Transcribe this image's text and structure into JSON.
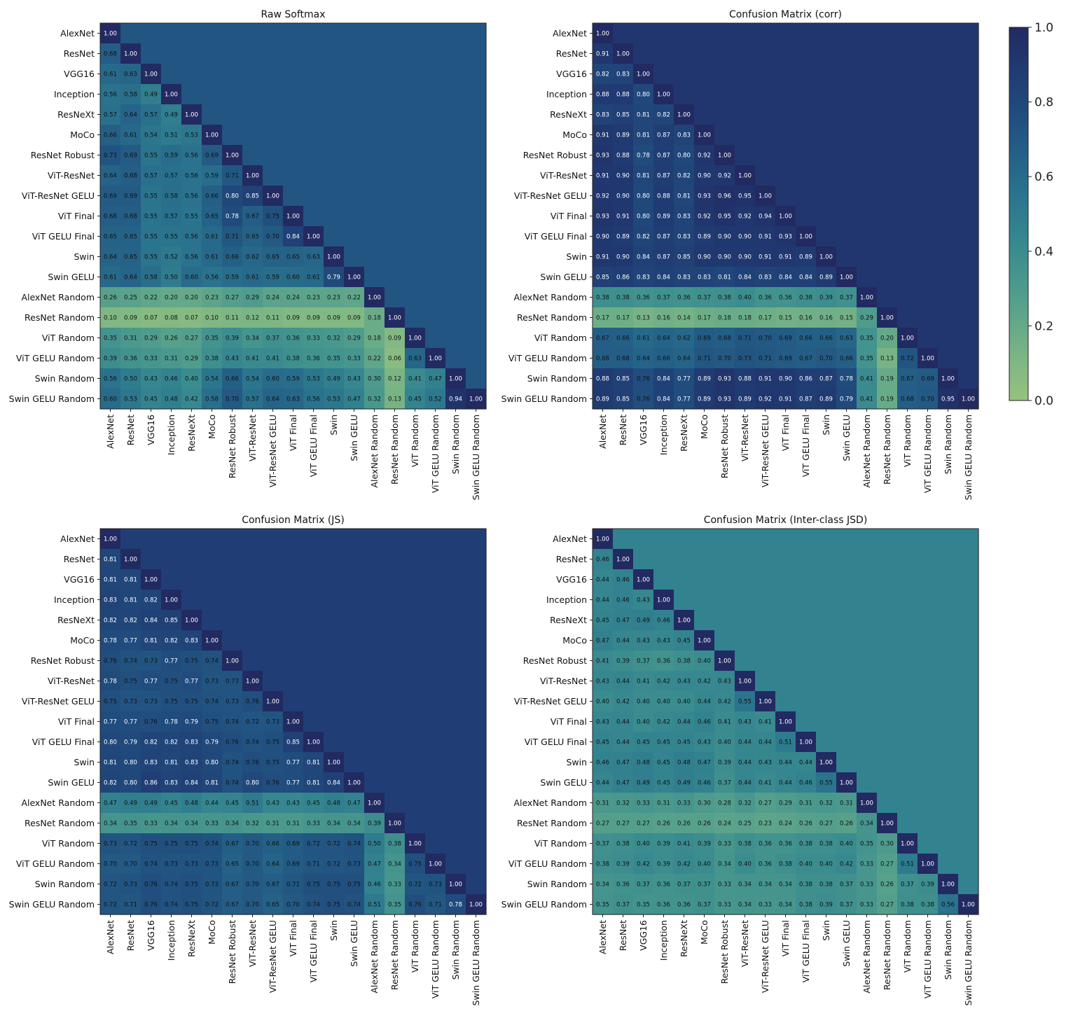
{
  "chart_data": [
    {
      "type": "heatmap",
      "title": "Raw Softmax",
      "labels": [
        "AlexNet",
        "ResNet",
        "VGG16",
        "Inception",
        "ResNeXt",
        "MoCo",
        "ResNet Robust",
        "ViT-ResNet",
        "ViT-ResNet GELU",
        "ViT Final",
        "ViT GELU Final",
        "Swin",
        "Swin GELU",
        "AlexNet Random",
        "ResNet Random",
        "ViT Random",
        "ViT GELU Random",
        "Swin Random",
        "Swin GELU Random"
      ],
      "lower": [
        [],
        [
          0.68
        ],
        [
          0.61,
          0.63
        ],
        [
          0.56,
          0.58,
          0.49
        ],
        [
          0.57,
          0.64,
          0.57,
          0.49
        ],
        [
          0.66,
          0.61,
          0.54,
          0.51,
          0.53
        ],
        [
          0.73,
          0.69,
          0.55,
          0.59,
          0.56,
          0.69
        ],
        [
          0.64,
          0.68,
          0.57,
          0.57,
          0.56,
          0.59,
          0.71
        ],
        [
          0.69,
          0.69,
          0.55,
          0.58,
          0.56,
          0.66,
          0.8,
          0.85
        ],
        [
          0.68,
          0.68,
          0.55,
          0.57,
          0.55,
          0.65,
          0.78,
          0.67,
          0.75
        ],
        [
          0.65,
          0.65,
          0.55,
          0.55,
          0.56,
          0.61,
          0.71,
          0.65,
          0.7,
          0.84
        ],
        [
          0.64,
          0.65,
          0.55,
          0.52,
          0.56,
          0.61,
          0.66,
          0.62,
          0.65,
          0.65,
          0.63
        ],
        [
          0.61,
          0.64,
          0.58,
          0.5,
          0.6,
          0.56,
          0.59,
          0.61,
          0.59,
          0.6,
          0.61,
          0.79
        ],
        [
          0.26,
          0.25,
          0.22,
          0.2,
          0.2,
          0.23,
          0.27,
          0.29,
          0.24,
          0.24,
          0.23,
          0.23,
          0.22
        ],
        [
          0.1,
          0.09,
          0.07,
          0.08,
          0.07,
          0.1,
          0.11,
          0.12,
          0.11,
          0.09,
          0.09,
          0.09,
          0.09,
          0.18
        ],
        [
          0.35,
          0.31,
          0.29,
          0.26,
          0.27,
          0.35,
          0.39,
          0.34,
          0.37,
          0.36,
          0.33,
          0.32,
          0.29,
          0.18,
          0.09
        ],
        [
          0.39,
          0.36,
          0.33,
          0.31,
          0.29,
          0.38,
          0.43,
          0.41,
          0.41,
          0.38,
          0.36,
          0.35,
          0.33,
          0.22,
          0.06,
          0.63
        ],
        [
          0.56,
          0.5,
          0.43,
          0.46,
          0.4,
          0.54,
          0.66,
          0.54,
          0.6,
          0.59,
          0.53,
          0.49,
          0.43,
          0.3,
          0.12,
          0.41,
          0.47
        ],
        [
          0.6,
          0.53,
          0.45,
          0.48,
          0.42,
          0.58,
          0.7,
          0.57,
          0.64,
          0.63,
          0.56,
          0.53,
          0.47,
          0.32,
          0.13,
          0.45,
          0.52,
          0.94
        ]
      ],
      "upper_mean": 0.72
    },
    {
      "type": "heatmap",
      "title": "Confusion Matrix (corr)",
      "labels": [
        "AlexNet",
        "ResNet",
        "VGG16",
        "Inception",
        "ResNeXt",
        "MoCo",
        "ResNet Robust",
        "ViT-ResNet",
        "ViT-ResNet GELU",
        "ViT Final",
        "ViT GELU Final",
        "Swin",
        "Swin GELU",
        "AlexNet Random",
        "ResNet Random",
        "ViT Random",
        "ViT GELU Random",
        "Swin Random",
        "Swin GELU Random"
      ],
      "lower": [
        [],
        [
          0.91
        ],
        [
          0.82,
          0.83
        ],
        [
          0.88,
          0.88,
          0.8
        ],
        [
          0.83,
          0.85,
          0.81,
          0.82
        ],
        [
          0.91,
          0.89,
          0.81,
          0.87,
          0.83
        ],
        [
          0.93,
          0.88,
          0.78,
          0.87,
          0.8,
          0.92
        ],
        [
          0.91,
          0.9,
          0.81,
          0.87,
          0.82,
          0.9,
          0.92
        ],
        [
          0.92,
          0.9,
          0.8,
          0.88,
          0.81,
          0.93,
          0.96,
          0.95
        ],
        [
          0.93,
          0.91,
          0.8,
          0.89,
          0.83,
          0.92,
          0.95,
          0.92,
          0.94
        ],
        [
          0.9,
          0.89,
          0.82,
          0.87,
          0.83,
          0.89,
          0.9,
          0.9,
          0.91,
          0.93
        ],
        [
          0.91,
          0.9,
          0.84,
          0.87,
          0.85,
          0.9,
          0.9,
          0.9,
          0.91,
          0.91,
          0.89
        ],
        [
          0.85,
          0.86,
          0.83,
          0.84,
          0.83,
          0.83,
          0.81,
          0.84,
          0.83,
          0.84,
          0.84,
          0.89
        ],
        [
          0.38,
          0.38,
          0.36,
          0.37,
          0.36,
          0.37,
          0.38,
          0.4,
          0.36,
          0.36,
          0.38,
          0.39,
          0.37
        ],
        [
          0.17,
          0.17,
          0.13,
          0.16,
          0.14,
          0.17,
          0.18,
          0.18,
          0.17,
          0.15,
          0.16,
          0.16,
          0.15,
          0.29
        ],
        [
          0.67,
          0.66,
          0.61,
          0.64,
          0.62,
          0.69,
          0.68,
          0.71,
          0.7,
          0.69,
          0.66,
          0.66,
          0.63,
          0.35,
          0.2
        ],
        [
          0.68,
          0.68,
          0.64,
          0.66,
          0.64,
          0.71,
          0.7,
          0.73,
          0.71,
          0.69,
          0.67,
          0.7,
          0.66,
          0.35,
          0.13,
          0.72
        ],
        [
          0.88,
          0.85,
          0.76,
          0.84,
          0.77,
          0.89,
          0.93,
          0.88,
          0.91,
          0.9,
          0.86,
          0.87,
          0.78,
          0.41,
          0.19,
          0.67,
          0.69
        ],
        [
          0.89,
          0.85,
          0.76,
          0.84,
          0.77,
          0.89,
          0.93,
          0.89,
          0.92,
          0.91,
          0.87,
          0.89,
          0.79,
          0.41,
          0.19,
          0.68,
          0.7,
          0.95
        ]
      ],
      "upper_mean": 0.92
    },
    {
      "type": "heatmap",
      "title": "Confusion Matrix (JS)",
      "labels": [
        "AlexNet",
        "ResNet",
        "VGG16",
        "Inception",
        "ResNeXt",
        "MoCo",
        "ResNet Robust",
        "ViT-ResNet",
        "ViT-ResNet GELU",
        "ViT Final",
        "ViT GELU Final",
        "Swin",
        "Swin GELU",
        "AlexNet Random",
        "ResNet Random",
        "ViT Random",
        "ViT GELU Random",
        "Swin Random",
        "Swin GELU Random"
      ],
      "lower": [
        [],
        [
          0.81
        ],
        [
          0.81,
          0.81
        ],
        [
          0.83,
          0.81,
          0.82
        ],
        [
          0.82,
          0.82,
          0.84,
          0.85
        ],
        [
          0.78,
          0.77,
          0.81,
          0.82,
          0.83
        ],
        [
          0.76,
          0.74,
          0.73,
          0.77,
          0.75,
          0.74
        ],
        [
          0.78,
          0.75,
          0.77,
          0.75,
          0.77,
          0.73,
          0.73
        ],
        [
          0.75,
          0.73,
          0.73,
          0.75,
          0.75,
          0.74,
          0.73,
          0.76
        ],
        [
          0.77,
          0.77,
          0.76,
          0.78,
          0.79,
          0.75,
          0.74,
          0.72,
          0.73
        ],
        [
          0.8,
          0.79,
          0.82,
          0.82,
          0.83,
          0.79,
          0.76,
          0.74,
          0.75,
          0.85
        ],
        [
          0.81,
          0.8,
          0.83,
          0.81,
          0.83,
          0.8,
          0.74,
          0.76,
          0.75,
          0.77,
          0.81
        ],
        [
          0.82,
          0.8,
          0.86,
          0.83,
          0.84,
          0.81,
          0.74,
          0.8,
          0.76,
          0.77,
          0.81,
          0.84
        ],
        [
          0.47,
          0.49,
          0.49,
          0.45,
          0.48,
          0.44,
          0.45,
          0.51,
          0.43,
          0.43,
          0.45,
          0.48,
          0.47
        ],
        [
          0.34,
          0.35,
          0.33,
          0.34,
          0.34,
          0.33,
          0.34,
          0.32,
          0.31,
          0.31,
          0.33,
          0.34,
          0.34,
          0.39
        ],
        [
          0.73,
          0.72,
          0.75,
          0.75,
          0.75,
          0.74,
          0.67,
          0.7,
          0.66,
          0.69,
          0.72,
          0.72,
          0.74,
          0.5,
          0.38
        ],
        [
          0.7,
          0.7,
          0.74,
          0.73,
          0.73,
          0.73,
          0.65,
          0.7,
          0.64,
          0.69,
          0.71,
          0.72,
          0.73,
          0.47,
          0.34,
          0.75
        ],
        [
          0.72,
          0.73,
          0.76,
          0.74,
          0.75,
          0.73,
          0.67,
          0.7,
          0.67,
          0.71,
          0.75,
          0.75,
          0.75,
          0.46,
          0.33,
          0.72,
          0.73
        ],
        [
          0.72,
          0.71,
          0.76,
          0.74,
          0.75,
          0.72,
          0.67,
          0.7,
          0.65,
          0.7,
          0.74,
          0.75,
          0.74,
          0.51,
          0.35,
          0.76,
          0.71,
          0.78
        ]
      ],
      "upper_mean": 0.86
    },
    {
      "type": "heatmap",
      "title": "Confusion Matrix (Inter-class JSD)",
      "labels": [
        "AlexNet",
        "ResNet",
        "VGG16",
        "Inception",
        "ResNeXt",
        "MoCo",
        "ResNet Robust",
        "ViT-ResNet",
        "ViT-ResNet GELU",
        "ViT Final",
        "ViT GELU Final",
        "Swin",
        "Swin GELU",
        "AlexNet Random",
        "ResNet Random",
        "ViT Random",
        "ViT GELU Random",
        "Swin Random",
        "Swin GELU Random"
      ],
      "lower": [
        [],
        [
          0.46
        ],
        [
          0.44,
          0.46
        ],
        [
          0.44,
          0.46,
          0.43
        ],
        [
          0.45,
          0.47,
          0.49,
          0.46
        ],
        [
          0.47,
          0.44,
          0.43,
          0.43,
          0.45
        ],
        [
          0.41,
          0.39,
          0.37,
          0.36,
          0.38,
          0.4
        ],
        [
          0.43,
          0.44,
          0.41,
          0.42,
          0.43,
          0.42,
          0.43
        ],
        [
          0.4,
          0.42,
          0.4,
          0.4,
          0.4,
          0.44,
          0.42,
          0.55
        ],
        [
          0.43,
          0.44,
          0.4,
          0.42,
          0.44,
          0.46,
          0.41,
          0.43,
          0.41
        ],
        [
          0.45,
          0.44,
          0.45,
          0.45,
          0.45,
          0.43,
          0.4,
          0.44,
          0.44,
          0.51
        ],
        [
          0.46,
          0.47,
          0.48,
          0.45,
          0.48,
          0.47,
          0.39,
          0.44,
          0.43,
          0.44,
          0.44
        ],
        [
          0.44,
          0.47,
          0.49,
          0.45,
          0.49,
          0.46,
          0.37,
          0.44,
          0.41,
          0.44,
          0.46,
          0.55
        ],
        [
          0.31,
          0.32,
          0.33,
          0.31,
          0.33,
          0.3,
          0.28,
          0.32,
          0.27,
          0.29,
          0.31,
          0.32,
          0.31
        ],
        [
          0.27,
          0.27,
          0.27,
          0.26,
          0.26,
          0.26,
          0.24,
          0.25,
          0.23,
          0.24,
          0.26,
          0.27,
          0.26,
          0.34
        ],
        [
          0.37,
          0.38,
          0.4,
          0.39,
          0.41,
          0.39,
          0.33,
          0.38,
          0.36,
          0.36,
          0.38,
          0.38,
          0.4,
          0.35,
          0.3
        ],
        [
          0.38,
          0.39,
          0.42,
          0.39,
          0.42,
          0.4,
          0.34,
          0.4,
          0.36,
          0.38,
          0.4,
          0.4,
          0.42,
          0.33,
          0.27,
          0.51
        ],
        [
          0.34,
          0.36,
          0.37,
          0.36,
          0.37,
          0.37,
          0.33,
          0.34,
          0.34,
          0.34,
          0.38,
          0.38,
          0.37,
          0.33,
          0.26,
          0.37,
          0.39
        ],
        [
          0.35,
          0.37,
          0.35,
          0.36,
          0.36,
          0.37,
          0.33,
          0.34,
          0.33,
          0.34,
          0.38,
          0.39,
          0.37,
          0.33,
          0.27,
          0.38,
          0.38,
          0.56
        ]
      ],
      "upper_mean": 0.46
    }
  ],
  "colorbar": {
    "min": 0.0,
    "max": 1.0,
    "ticks": [
      "0.0",
      "0.2",
      "0.4",
      "0.6",
      "0.8",
      "1.0"
    ],
    "colormap": [
      "#97c27e",
      "#7db684",
      "#5fa68a",
      "#46968e",
      "#34858f",
      "#2a738d",
      "#245f86",
      "#204b7d",
      "#203a72",
      "#222a62"
    ]
  },
  "diagonal_label": "1.00"
}
